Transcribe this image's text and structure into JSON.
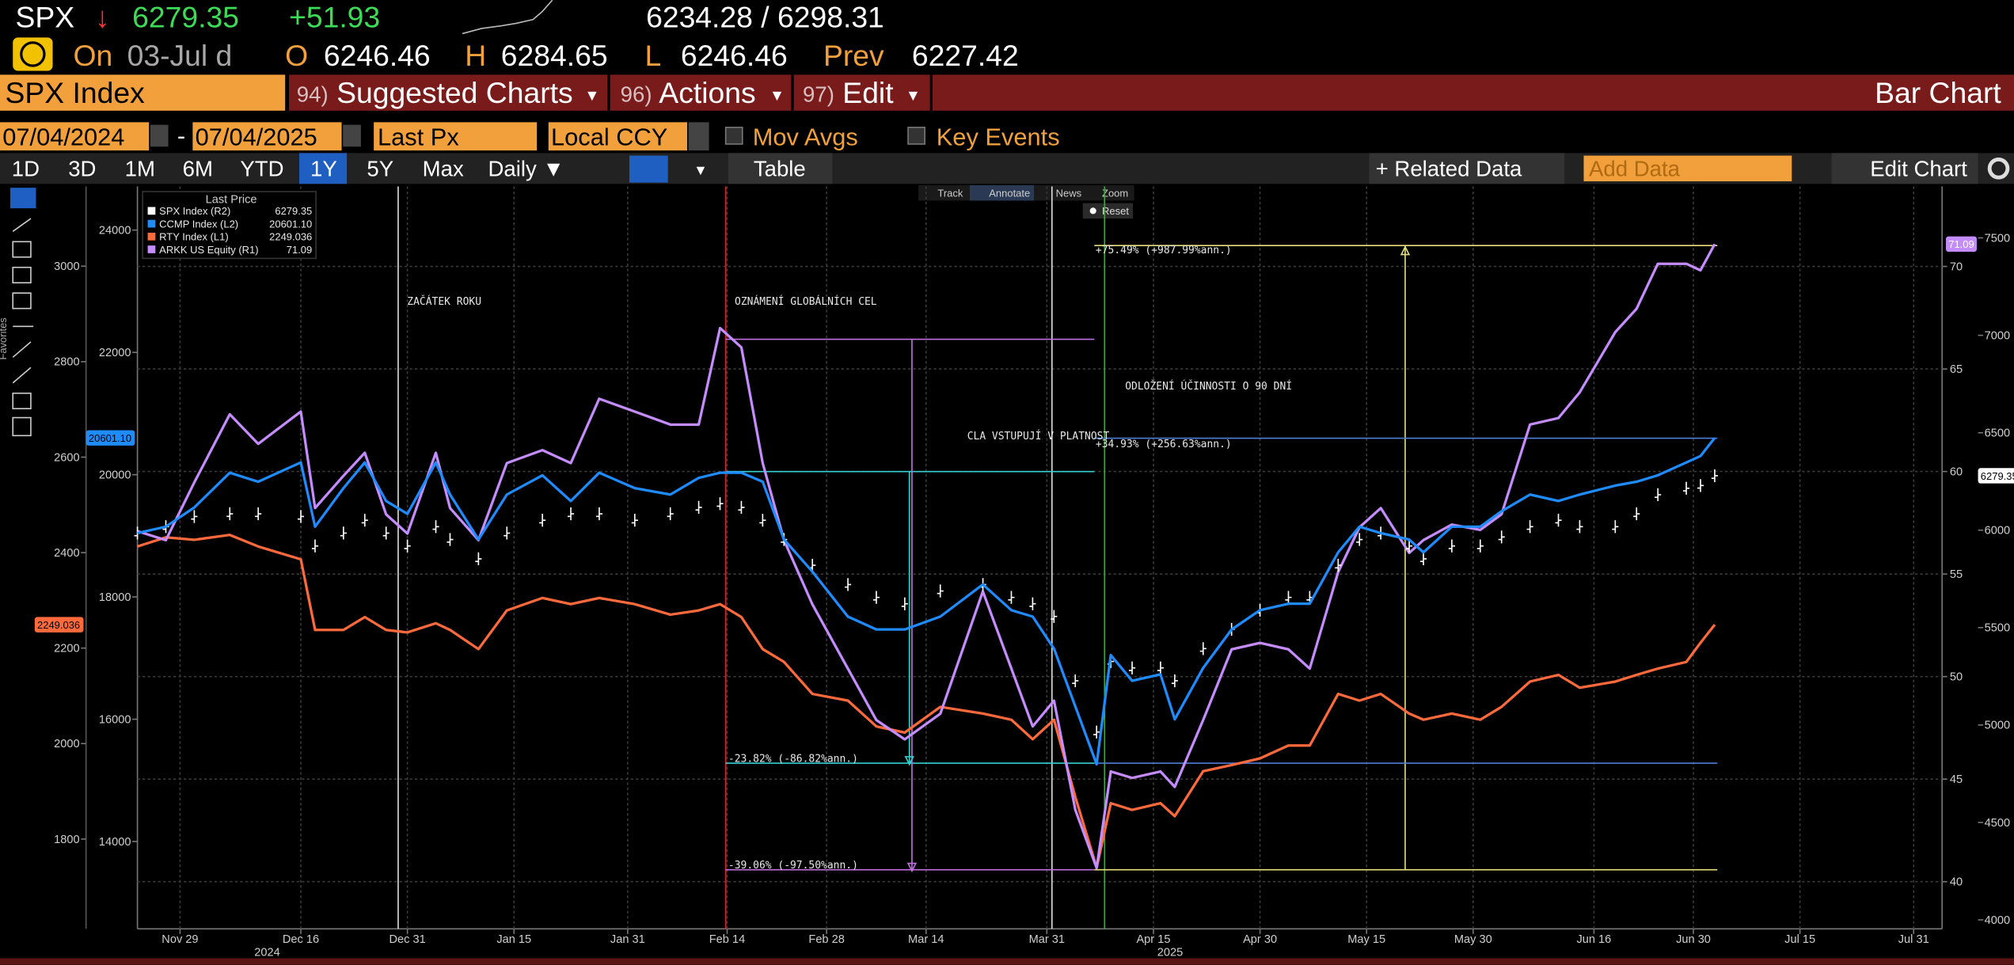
{
  "quote": {
    "ticker": "SPX",
    "arrow": "↓",
    "last": "6279.35",
    "change": "+51.93",
    "range": "6234.28 / 6298.31",
    "on": "On",
    "date": "03-Jul d",
    "open_label": "O",
    "open": "6246.46",
    "high_label": "H",
    "high": "6284.65",
    "low_label": "L",
    "low": "6246.46",
    "prev_label": "Prev",
    "prev": "6227.42"
  },
  "menu": {
    "security": "SPX Index",
    "items": [
      {
        "num": "94)",
        "label": "Suggested Charts"
      },
      {
        "num": "96)",
        "label": "Actions"
      },
      {
        "num": "97)",
        "label": "Edit"
      }
    ],
    "chart_type": "Bar Chart"
  },
  "controls": {
    "start": "07/04/2024",
    "dash": "-",
    "end": "07/04/2025",
    "field": "Last Px",
    "currency": "Local CCY",
    "mov_avgs": "Mov Avgs",
    "key_events": "Key Events",
    "periods": [
      "1D",
      "3D",
      "1M",
      "6M",
      "YTD",
      "1Y",
      "5Y",
      "Max"
    ],
    "frequency": "Daily ▼",
    "table": "Table",
    "related": "+ Related Data",
    "add_data": "Add Data",
    "edit_chart": "Edit Chart"
  },
  "chart_tools": {
    "items": [
      "Track",
      "Annotate",
      "News",
      "Zoom"
    ],
    "reset": "Reset",
    "favorites": "Favorites"
  },
  "chart_data": {
    "type": "line",
    "x": [
      "2024-11-23",
      "2024-11-27",
      "2024-12-01",
      "2024-12-06",
      "2024-12-10",
      "2024-12-16",
      "2024-12-18",
      "2024-12-22",
      "2024-12-25",
      "2024-12-28",
      "2024-12-31",
      "2025-01-04",
      "2025-01-06",
      "2025-01-10",
      "2025-01-14",
      "2025-01-19",
      "2025-01-23",
      "2025-01-27",
      "2025-02-01",
      "2025-02-06",
      "2025-02-10",
      "2025-02-13",
      "2025-02-16",
      "2025-02-19",
      "2025-02-22",
      "2025-02-26",
      "2025-03-03",
      "2025-03-07",
      "2025-03-11",
      "2025-03-16",
      "2025-03-22",
      "2025-03-26",
      "2025-03-29",
      "2025-04-01",
      "2025-04-04",
      "2025-04-07",
      "2025-04-09",
      "2025-04-12",
      "2025-04-16",
      "2025-04-18",
      "2025-04-22",
      "2025-04-26",
      "2025-04-30",
      "2025-05-04",
      "2025-05-07",
      "2025-05-11",
      "2025-05-14",
      "2025-05-17",
      "2025-05-21",
      "2025-05-23",
      "2025-05-27",
      "2025-05-31",
      "2025-06-03",
      "2025-06-07",
      "2025-06-11",
      "2025-06-14",
      "2025-06-19",
      "2025-06-22",
      "2025-06-25",
      "2025-06-29",
      "2025-07-01",
      "2025-07-03"
    ],
    "xlim": [
      "2024-11-23",
      "2025-08-04"
    ],
    "xticks": [
      {
        "value": "2024-11-29",
        "label": "Nov 29"
      },
      {
        "value": "2024-12-16",
        "label": "Dec 16"
      },
      {
        "value": "2024-12-31",
        "label": "Dec 31"
      },
      {
        "value": "2025-01-15",
        "label": "Jan 15"
      },
      {
        "value": "2025-01-31",
        "label": "Jan 31"
      },
      {
        "value": "2025-02-14",
        "label": "Feb 14"
      },
      {
        "value": "2025-02-28",
        "label": "Feb 28"
      },
      {
        "value": "2025-03-14",
        "label": "Mar 14"
      },
      {
        "value": "2025-03-31",
        "label": "Mar 31"
      },
      {
        "value": "2025-04-15",
        "label": "Apr 15"
      },
      {
        "value": "2025-04-30",
        "label": "Apr 30"
      },
      {
        "value": "2025-05-15",
        "label": "May 15"
      },
      {
        "value": "2025-05-30",
        "label": "May 30"
      },
      {
        "value": "2025-06-16",
        "label": "Jun 16"
      },
      {
        "value": "2025-06-30",
        "label": "Jun 30"
      },
      {
        "value": "2025-07-15",
        "label": "Jul 15"
      },
      {
        "value": "2025-07-31",
        "label": "Jul 31"
      }
    ],
    "x_year_labels": [
      "2024",
      "2025"
    ],
    "axes": [
      {
        "ylim": [
          1612,
          3167
        ],
        "yticks": [
          1800,
          2000,
          2200,
          2400,
          2600,
          2800,
          3000
        ]
      },
      {
        "ylim": [
          12572,
          24714
        ],
        "yticks": [
          14000,
          16000,
          18000,
          20000,
          22000,
          24000
        ]
      },
      {
        "ylim": [
          37.7,
          73.9
        ],
        "yticks": [
          40,
          45,
          50,
          55,
          60,
          65,
          70
        ]
      },
      {
        "ylim": [
          3954,
          7764
        ],
        "yticks": [
          4000,
          4500,
          5000,
          5500,
          6000,
          6500,
          7000,
          7500
        ]
      }
    ],
    "grid": true,
    "legend_title": "Last Price",
    "series": [
      {
        "name": "SPX Index  (R2)",
        "color": "#ffffff",
        "style": "bars",
        "axis": 3,
        "last_label": "6279.35",
        "values": [
          5985,
          6018,
          6070,
          6084,
          6084,
          6070,
          5919,
          5985,
          6051,
          5985,
          5919,
          6018,
          5952,
          5853,
          5985,
          6051,
          6084,
          6084,
          6051,
          6084,
          6117,
          6136,
          6117,
          6051,
          5952,
          5820,
          5721,
          5655,
          5622,
          5688,
          5721,
          5655,
          5622,
          5557,
          5227,
          4964,
          5326,
          5293,
          5293,
          5227,
          5392,
          5491,
          5589,
          5655,
          5655,
          5820,
          5952,
          5985,
          5919,
          5853,
          5919,
          5919,
          5965,
          6018,
          6051,
          6018,
          6018,
          6084,
          6182,
          6215,
          6229,
          6279.35
        ]
      },
      {
        "name": "CCMP Index  (L2)",
        "color": "#1e8bff",
        "style": "line",
        "axis": 1,
        "last_label": "20601.10",
        "values": [
          19044,
          19149,
          19464,
          20031,
          19884,
          20199,
          19149,
          19779,
          20199,
          19569,
          19359,
          20199,
          19674,
          18939,
          19674,
          19989,
          19569,
          20031,
          19779,
          19674,
          19947,
          20031,
          20031,
          19884,
          18939,
          18414,
          17679,
          17469,
          17469,
          17679,
          18204,
          17784,
          17679,
          17154,
          16209,
          15264,
          17049,
          16629,
          16734,
          15999,
          16839,
          17469,
          17784,
          17889,
          17889,
          18729,
          19149,
          19044,
          18939,
          18729,
          19149,
          19149,
          19401,
          19674,
          19569,
          19674,
          19821,
          19884,
          19989,
          20199,
          20304,
          20601.1
        ]
      },
      {
        "name": "RTY Index  (L1)",
        "color": "#ff6a3d",
        "style": "line",
        "axis": 0,
        "last_label": "2249.036",
        "values": [
          2413,
          2432,
          2427,
          2437,
          2413,
          2386,
          2238,
          2238,
          2265,
          2238,
          2233,
          2252,
          2238,
          2198,
          2279,
          2305,
          2292,
          2305,
          2292,
          2270,
          2279,
          2292,
          2265,
          2198,
          2171,
          2104,
          2090,
          2036,
          2023,
          2077,
          2063,
          2050,
          2009,
          2050,
          1888,
          1740,
          1875,
          1861,
          1875,
          1848,
          1942,
          1955,
          1969,
          1996,
          1996,
          2104,
          2090,
          2104,
          2063,
          2050,
          2063,
          2050,
          2077,
          2130,
          2144,
          2117,
          2130,
          2144,
          2157,
          2171,
          2211,
          2249.036
        ]
      },
      {
        "name": "ARKK US Equity  (R1)",
        "color": "#c58cff",
        "style": "line",
        "axis": 2,
        "last_label": "71.09",
        "values": [
          57.09,
          56.65,
          59.47,
          62.79,
          61.35,
          62.92,
          58.22,
          59.79,
          60.91,
          57.91,
          56.97,
          60.91,
          58.22,
          56.65,
          60.41,
          61.04,
          60.41,
          63.55,
          62.92,
          62.29,
          62.29,
          66.99,
          66.05,
          60.41,
          56.65,
          53.52,
          50.39,
          47.88,
          46.94,
          48.19,
          54.15,
          50.39,
          47.57,
          48.82,
          43.5,
          40.67,
          45.37,
          45.06,
          45.37,
          44.62,
          47.88,
          51.33,
          51.64,
          51.33,
          50.39,
          55.09,
          57.28,
          58.22,
          56.03,
          56.65,
          57.41,
          57.15,
          57.91,
          62.29,
          62.61,
          63.86,
          66.8,
          67.93,
          70.13,
          70.13,
          69.81,
          71.09
        ]
      }
    ],
    "annotations": [
      "ZAČÁTEK ROKU",
      "OZNÁMENÍ GLOBÁLNÍCH CEL",
      "ODLOŽENÍ ÚČINNOSTI O 90 DNÍ",
      "CLA VSTUPUJÍ V PLATNOST",
      "+75.49% (+987.99%ann.)",
      "+34.93% (+256.63%ann.)",
      "-23.82% (-86.82%ann.)",
      "-39.06% (-97.50%ann.)"
    ]
  }
}
